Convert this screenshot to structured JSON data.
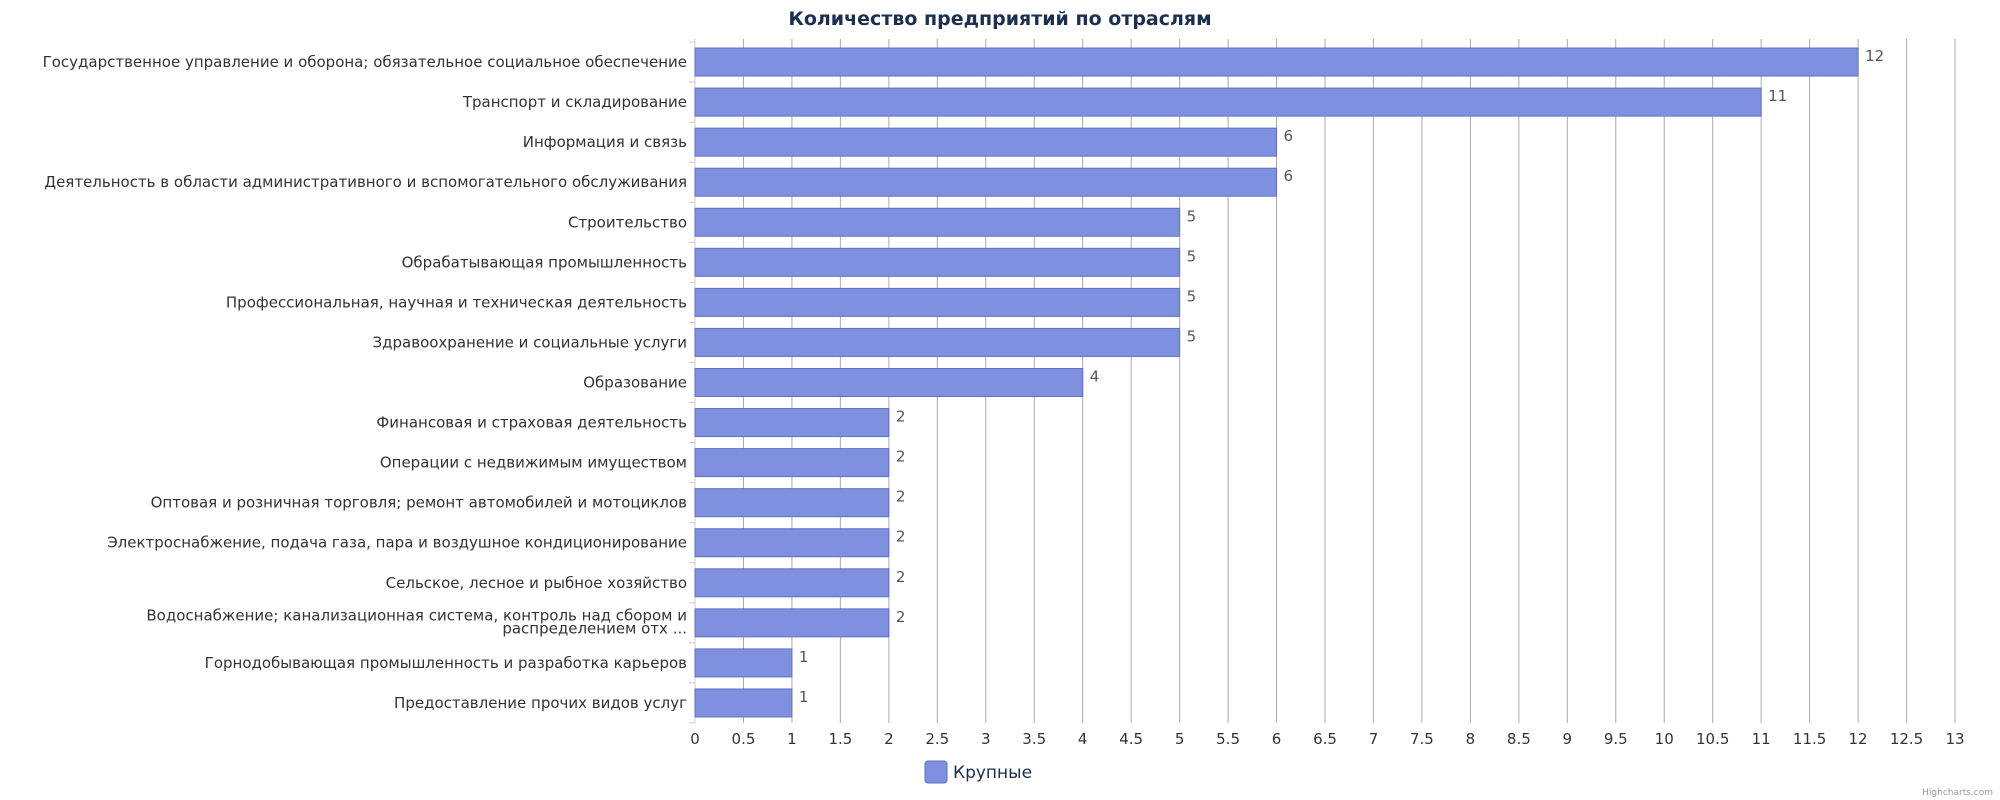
{
  "chart_data": {
    "type": "bar",
    "orientation": "horizontal",
    "title": "Количество предприятий по отраслям",
    "categories": [
      "Государственное управление и оборона; обязательное социальное обеспечение",
      "Транспорт и складирование",
      "Информация и связь",
      "Деятельность в области административного и вспомогательного обслуживания",
      "Строительство",
      "Обрабатывающая промышленность",
      "Профессиональная, научная и техническая деятельность",
      "Здравоохранение и социальные услуги",
      "Образование",
      "Финансовая и страховая деятельность",
      "Операции с недвижимым имуществом",
      "Оптовая и розничная торговля; ремонт автомобилей и мотоциклов",
      "Электроснабжение, подача газа, пара и воздушное кондиционирование",
      "Сельское, лесное и рыбное хозяйство",
      "Водоснабжение; канализационная система, контроль над сбором и распределением отх ...",
      "Горнодобывающая промышленность и разработка карьеров",
      "Предоставление прочих видов услуг"
    ],
    "series": [
      {
        "name": "Крупные",
        "color": "#7f91de",
        "values": [
          12,
          11,
          6,
          6,
          5,
          5,
          5,
          5,
          4,
          2,
          2,
          2,
          2,
          2,
          2,
          1,
          1
        ]
      }
    ],
    "xlim": [
      0,
      13
    ],
    "ticks": [
      "0",
      "0.5",
      "1",
      "1.5",
      "2",
      "2.5",
      "3",
      "3.5",
      "4",
      "4.5",
      "5",
      "5.5",
      "6",
      "6.5",
      "7",
      "7.5",
      "8",
      "8.5",
      "9",
      "9.5",
      "10",
      "10.5",
      "11",
      "11.5",
      "12",
      "12.5",
      "13"
    ],
    "grid": true,
    "data_labels": true,
    "legend_position": "bottom-center"
  },
  "credits": "Highcharts.com",
  "colors": {
    "bar": "#7f91de",
    "bar_border": "#5f70c0",
    "grid": "#aaaaaa",
    "title": "#1b2f50"
  }
}
